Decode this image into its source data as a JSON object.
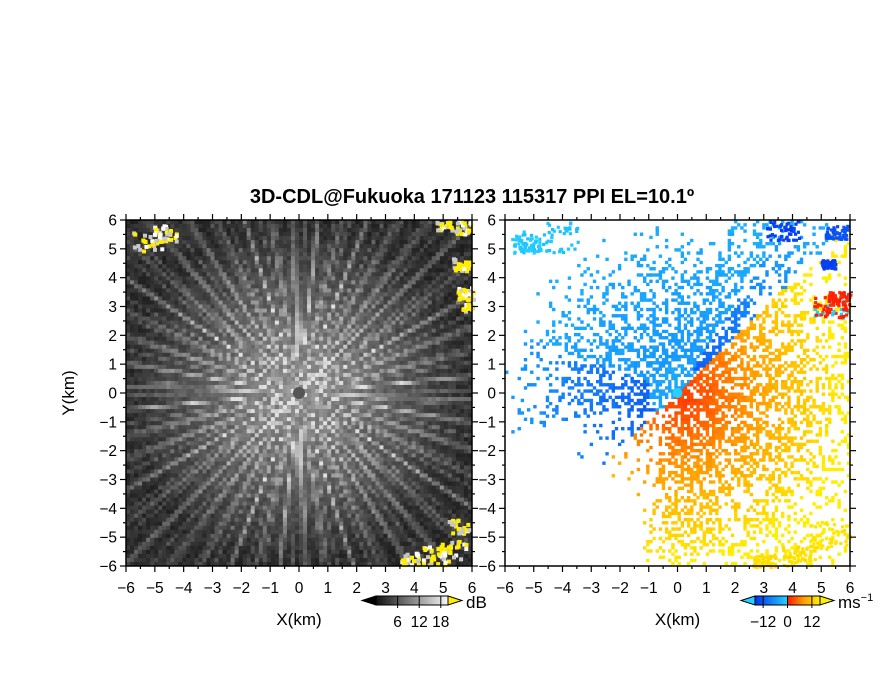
{
  "title": "3D-CDL@Fukuoka 171123 115317 PPI EL=10.1º",
  "chart_data": [
    {
      "type": "heatmap",
      "panel": "left",
      "quantity": "SNR",
      "xlabel": "X(km)",
      "ylabel": "Y(km)",
      "xlim": [
        -6,
        6
      ],
      "ylim": [
        -6,
        6
      ],
      "xticks": [
        -6,
        -5,
        -4,
        -3,
        -2,
        -1,
        0,
        1,
        2,
        3,
        4,
        5,
        6
      ],
      "yticks": [
        -6,
        -5,
        -4,
        -3,
        -2,
        -1,
        0,
        1,
        2,
        3,
        4,
        5,
        6
      ],
      "colormap": "grayscale (black → white) with yellow above max",
      "colorbar": {
        "unit": "dB",
        "ticks": [
          "6",
          "12",
          "18"
        ],
        "range": [
          0,
          20
        ]
      }
    },
    {
      "type": "heatmap",
      "panel": "right",
      "quantity": "Doppler velocity",
      "xlabel": "X(km)",
      "ylabel": "",
      "xlim": [
        -6,
        6
      ],
      "ylim": [
        -6,
        6
      ],
      "xticks": [
        -6,
        -5,
        -4,
        -3,
        -2,
        -1,
        0,
        1,
        2,
        3,
        4,
        5,
        6
      ],
      "yticks": [
        -6,
        -5,
        -4,
        -3,
        -2,
        -1,
        0,
        1,
        2,
        3,
        4,
        5,
        6
      ],
      "colormap": "cyan → blue (negative), red → orange → yellow (positive)",
      "colorbar": {
        "unit": "ms",
        "unit_exponent": "−1",
        "ticks": [
          "−12",
          "0",
          "12"
        ],
        "range": [
          -16,
          16
        ]
      }
    }
  ],
  "colors": {
    "yellow": "#ffee00",
    "cyan": "#22d3ff",
    "blue": "#0a3cff",
    "red": "#ff1a00",
    "orange": "#ff9a00",
    "gray_dark": "#1a1a1a"
  }
}
